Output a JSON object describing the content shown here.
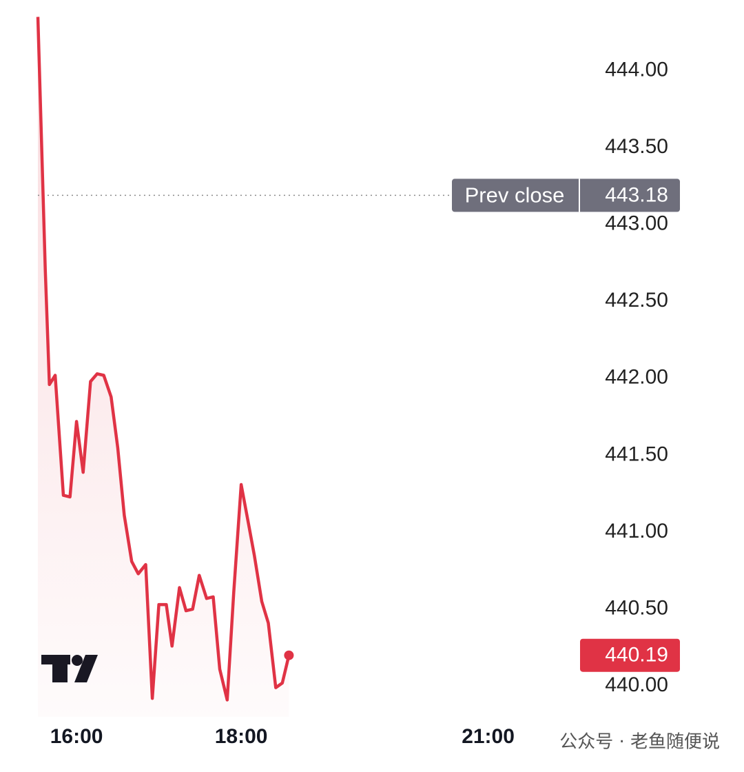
{
  "chart_data": {
    "type": "line",
    "x": [
      15.53,
      15.62,
      15.67,
      15.74,
      15.84,
      15.92,
      16.0,
      16.08,
      16.17,
      16.25,
      16.33,
      16.42,
      16.5,
      16.58,
      16.67,
      16.75,
      16.84,
      16.92,
      17.0,
      17.09,
      17.16,
      17.25,
      17.33,
      17.41,
      17.49,
      17.58,
      17.66,
      17.74,
      17.83,
      17.91,
      18.0,
      18.08,
      18.16,
      18.25,
      18.33,
      18.42,
      18.5,
      18.58
    ],
    "values": [
      444.34,
      442.7,
      441.95,
      442.01,
      441.23,
      441.22,
      441.71,
      441.38,
      441.97,
      442.02,
      442.01,
      441.87,
      441.54,
      441.1,
      440.8,
      440.72,
      440.78,
      439.91,
      440.52,
      440.52,
      440.25,
      440.63,
      440.48,
      440.49,
      440.71,
      440.56,
      440.57,
      440.1,
      439.9,
      440.6,
      441.3,
      441.07,
      440.84,
      440.54,
      440.4,
      439.98,
      440.01,
      440.19
    ],
    "color": "#e03345",
    "xlim": [
      15.07,
      22.1
    ],
    "xticks": [
      {
        "value": 16,
        "label": "16:00"
      },
      {
        "value": 18,
        "label": "18:00"
      },
      {
        "value": 21,
        "label": "21:00"
      }
    ],
    "ylim": [
      439.79,
      444.45
    ],
    "yticks": [
      {
        "value": 440,
        "label": "440.00"
      },
      {
        "value": 440.5,
        "label": "440.50"
      },
      {
        "value": 441,
        "label": "441.00"
      },
      {
        "value": 441.5,
        "label": "441.50"
      },
      {
        "value": 442,
        "label": "442.00"
      },
      {
        "value": 442.5,
        "label": "442.50"
      },
      {
        "value": 443,
        "label": "443.00"
      },
      {
        "value": 443.5,
        "label": "443.50"
      },
      {
        "value": 444,
        "label": "444.00"
      }
    ],
    "prev_close": {
      "label": "Prev close",
      "value": 443.18
    },
    "watermark": "公众号 · 老鱼随便说"
  }
}
